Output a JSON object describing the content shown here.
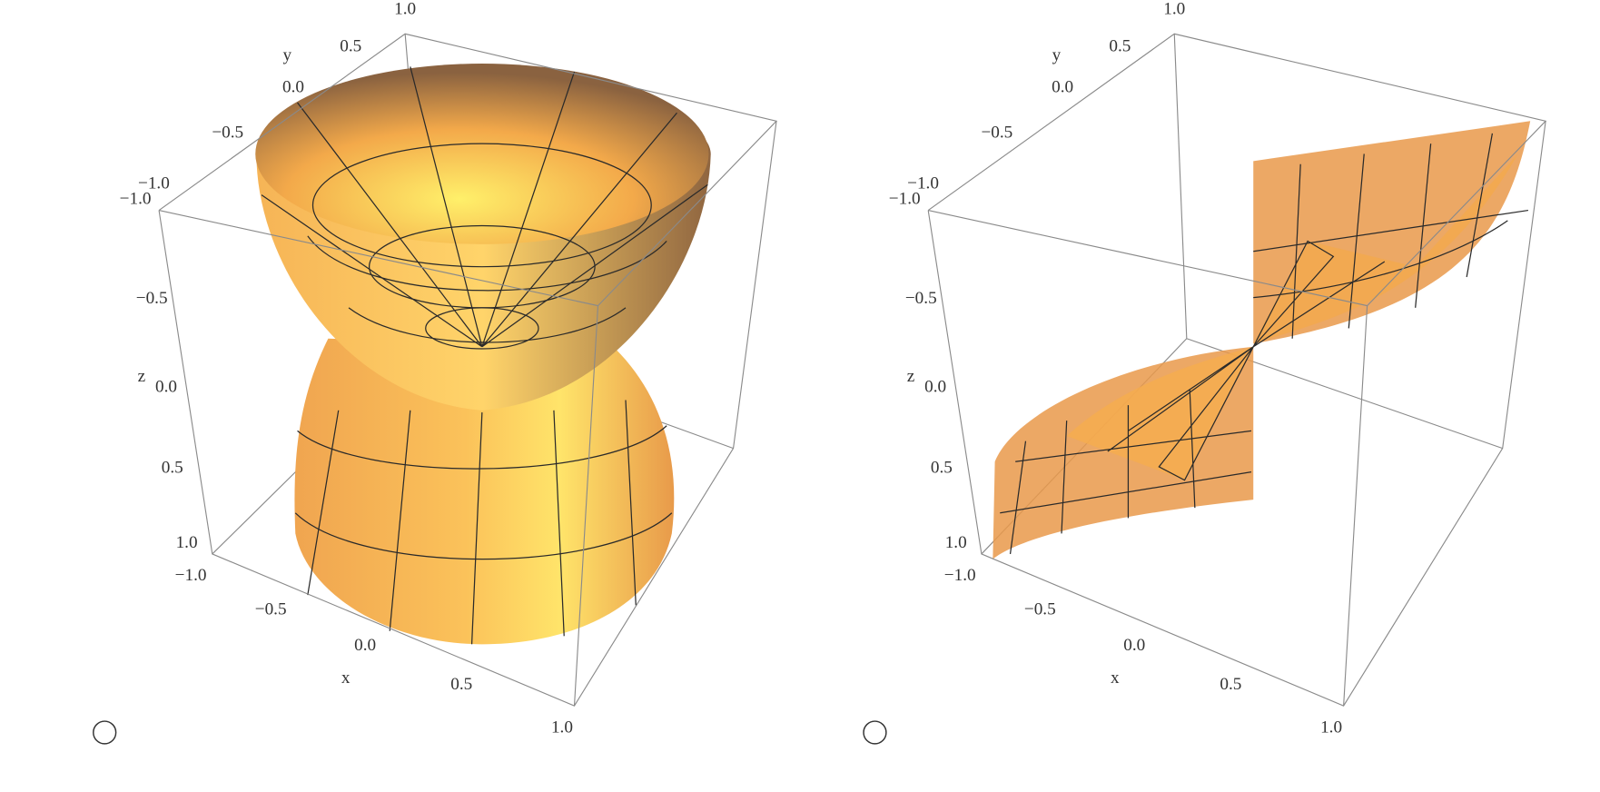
{
  "options": [
    {
      "axes": {
        "x": {
          "label": "x",
          "ticks": [
            "−1.0",
            "−0.5",
            "0.0",
            "0.5",
            "1.0"
          ]
        },
        "y": {
          "label": "y",
          "ticks": [
            "−1.0",
            "−0.5",
            "0.0",
            "0.5",
            "1.0"
          ]
        },
        "z": {
          "label": "z",
          "ticks": [
            "−1.0",
            "−0.5",
            "0.0",
            "0.5",
            "1.0"
          ]
        }
      }
    },
    {
      "axes": {
        "x": {
          "label": "x",
          "ticks": [
            "−1.0",
            "−0.5",
            "0.0",
            "0.5",
            "1.0"
          ]
        },
        "y": {
          "label": "y",
          "ticks": [
            "−1.0",
            "−0.5",
            "0.0",
            "0.5",
            "1.0"
          ]
        },
        "z": {
          "label": "z",
          "ticks": [
            "−1.0",
            "−0.5",
            "0.0",
            "0.5",
            "1.0"
          ]
        }
      }
    }
  ]
}
